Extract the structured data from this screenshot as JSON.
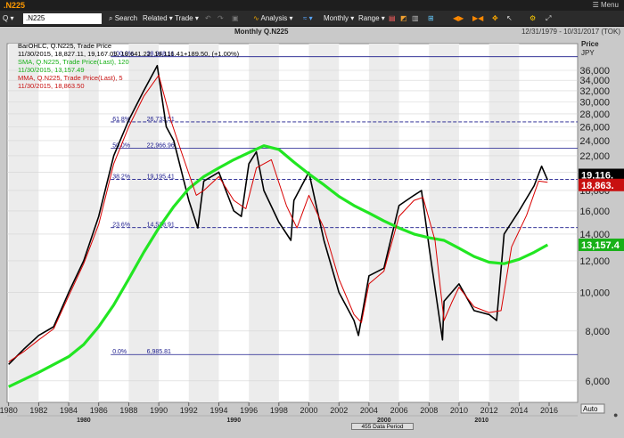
{
  "app": {
    "symbol": ".N225",
    "menu_label": "Menu"
  },
  "toolbar": {
    "period_selector": "Q",
    "symbol_value": ".N225",
    "search": "Search",
    "related": "Related",
    "trade": "Trade",
    "analysis": "Analysis",
    "interval": "Monthly",
    "range": "Range"
  },
  "chart_header": {
    "title": "Monthly Q.N225",
    "date_range": "12/31/1979 - 10/31/2017 (TOK)"
  },
  "legend": {
    "line1": "BarOHLC, Q.N225, Trade Price",
    "line2": "11/30/2015, 18,827.11, 19,167.09, 18,641.22, 19,116.41+189.50, (+1.00%)",
    "line3": "SMA, Q.N225, Trade Price(Last), 120",
    "line4": "11/30/2015, 13,157.49",
    "line5": "MMA, Q.N225, Trade Price(Last), 5",
    "line6": "11/30/2015, 18,863.50"
  },
  "y_axis": {
    "title1": "Price",
    "title2": "JPY",
    "auto_label": "Auto"
  },
  "status": {
    "data_period": "455 Data Period"
  },
  "colors": {
    "price": "#000000",
    "sma": "#22e622",
    "mma": "#d90000",
    "fib": "#1a1a8c",
    "badge_price_bg": "#000000",
    "badge_mma_bg": "#c81010",
    "badge_sma_bg": "#18b018"
  },
  "badges": {
    "price": "19,116.",
    "mma": "18,863.",
    "sma": "13,157.4"
  },
  "chart_data": {
    "type": "line",
    "y_scale": "log",
    "ylim": [
      5300,
      42000
    ],
    "xlim": [
      1979.9,
      2017.9
    ],
    "y_ticks": [
      "6,000",
      "8,000",
      "10,000",
      "12,000",
      "14,000",
      "16,000",
      "18,000",
      "20,000",
      "22,000",
      "24,000",
      "26,000",
      "28,000",
      "30,000",
      "32,000",
      "34,000",
      "36,000"
    ],
    "x_ticks": [
      "1980",
      "1982",
      "1984",
      "1986",
      "1988",
      "1990",
      "1992",
      "1994",
      "1996",
      "1998",
      "2000",
      "2002",
      "2004",
      "2006",
      "2008",
      "2010",
      "2012",
      "2014",
      "2016"
    ],
    "x_decades": [
      "1980",
      "1990",
      "2000",
      "2010"
    ],
    "fib_levels": [
      {
        "pct": "100.0%",
        "value": 38948.11,
        "label": "38,948.11"
      },
      {
        "pct": "61.8%",
        "value": 26733.51,
        "label": "26,733.51"
      },
      {
        "pct": "50.0%",
        "value": 22966.96,
        "label": "22,966.96"
      },
      {
        "pct": "38.2%",
        "value": 19195.41,
        "label": "19,195.41"
      },
      {
        "pct": "23.6%",
        "value": 14528.91,
        "label": "14,528.91"
      },
      {
        "pct": "0.0%",
        "value": 6985.81,
        "label": "6,985.81"
      }
    ],
    "series": [
      {
        "name": "BarOHLC, Q.N225, Trade Price",
        "x": [
          1980,
          1981,
          1982,
          1983,
          1984,
          1985,
          1986,
          1987,
          1988,
          1989,
          1989.9,
          1990.5,
          1991,
          1992,
          1992.6,
          1993,
          1994,
          1995,
          1995.5,
          1996,
          1996.5,
          1997,
          1998,
          1998.8,
          1999,
          2000,
          2001,
          2002,
          2003,
          2003.3,
          2004,
          2005,
          2006,
          2007,
          2007.5,
          2008,
          2008.9,
          2009,
          2010,
          2011,
          2012,
          2012.5,
          2013,
          2014,
          2015,
          2015.5,
          2015.9
        ],
        "values": [
          6600,
          7200,
          7800,
          8200,
          10000,
          12000,
          15500,
          22000,
          27000,
          32000,
          37000,
          26000,
          24000,
          17000,
          14500,
          19000,
          20000,
          16000,
          15500,
          21000,
          22500,
          18000,
          15000,
          13500,
          17000,
          20000,
          13500,
          10000,
          8500,
          7800,
          11000,
          11500,
          16500,
          17500,
          18000,
          13000,
          7600,
          9500,
          10500,
          9000,
          8800,
          8500,
          14000,
          16000,
          18500,
          20700,
          19116
        ]
      },
      {
        "name": "SMA, Q.N225, Trade Price(Last), 120",
        "x": [
          1980,
          1982,
          1984,
          1985,
          1986,
          1987,
          1988,
          1989,
          1990,
          1991,
          1992,
          1993,
          1994,
          1995,
          1996,
          1997,
          1998,
          1999,
          2000,
          2001,
          2002,
          2003,
          2004,
          2005,
          2006,
          2007,
          2008,
          2009,
          2010,
          2011,
          2012,
          2013,
          2014,
          2015,
          2015.9
        ],
        "values": [
          5800,
          6300,
          6900,
          7400,
          8200,
          9300,
          10800,
          12600,
          14500,
          16400,
          18200,
          19500,
          20500,
          21500,
          22400,
          23300,
          22800,
          21200,
          19800,
          18600,
          17400,
          16500,
          15800,
          15100,
          14500,
          14000,
          13700,
          13500,
          12900,
          12300,
          11900,
          11800,
          12100,
          12600,
          13157
        ]
      },
      {
        "name": "MMA, Q.N225, Trade Price(Last), 5",
        "x": [
          1980,
          1981,
          1982,
          1983,
          1984,
          1985,
          1986,
          1987,
          1988,
          1989,
          1990,
          1990.8,
          1991.5,
          1992.5,
          1993,
          1994,
          1995,
          1995.8,
          1996.5,
          1997.5,
          1998.5,
          1999.2,
          2000,
          2001,
          2002,
          2003,
          2003.5,
          2004,
          2005,
          2006,
          2007,
          2007.6,
          2008.4,
          2009,
          2009.5,
          2010,
          2011,
          2012,
          2012.8,
          2013.5,
          2014.5,
          2015.3,
          2015.9
        ],
        "values": [
          6700,
          7100,
          7600,
          8100,
          9800,
          11800,
          14800,
          21000,
          26000,
          31000,
          35000,
          27000,
          22500,
          17500,
          18000,
          19500,
          17000,
          16200,
          20500,
          21500,
          16500,
          14500,
          17500,
          14500,
          10800,
          8800,
          8400,
          10500,
          11300,
          15500,
          17000,
          17300,
          13500,
          8500,
          9400,
          10300,
          9200,
          8900,
          9000,
          13000,
          15600,
          19000,
          18863
        ]
      }
    ]
  }
}
